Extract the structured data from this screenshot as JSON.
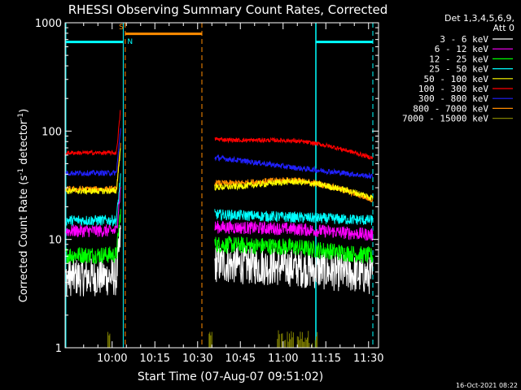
{
  "chart_data": {
    "type": "line",
    "title": "RHESSI Observing Summary Count Rates, Corrected",
    "xlabel": "Start Time (07-Aug-07 09:51:02)",
    "ylabel_main": "Corrected Count Rate (s",
    "ylabel_sup1": "-1",
    "ylabel_mid": " detector",
    "ylabel_sup2": "-1",
    "ylabel_end": ")",
    "y_scale": "log",
    "ylim": [
      1,
      1000
    ],
    "xlim_minutes": [
      -16.5,
      93.5
    ],
    "x_tick_labels": [
      "10:00",
      "10:15",
      "10:30",
      "10:45",
      "11:00",
      "11:15",
      "11:30"
    ],
    "x_tick_minutes": [
      0,
      15,
      30,
      45,
      60,
      75,
      90
    ],
    "y_tick_labels": [
      "1",
      "10",
      "100",
      "1000"
    ],
    "y_tick_values": [
      1,
      10,
      100,
      1000
    ],
    "legend_header": [
      "Det 1,3,4,5,6,9,",
      "Att 0"
    ],
    "footer_date": "16-Oct-2021 08:22",
    "annotations": [
      {
        "text": "S",
        "color": "#ff8c00"
      },
      {
        "text": "N",
        "color": "#00ffff"
      }
    ],
    "data_gap_minutes": [
      3,
      36
    ],
    "series": [
      {
        "name": "3 - 6 keV",
        "color": "#000000",
        "display_color": "#ffffff",
        "before_gap": 4.5,
        "after_start": 6.0,
        "after_mid": 5.5,
        "after_end": 4.6,
        "noise": 0.18
      },
      {
        "name": "6 - 12 keV",
        "color": "#ff00ff",
        "before_gap": 12,
        "after_start": 13,
        "after_mid": 12.5,
        "after_end": 11,
        "noise": 0.06
      },
      {
        "name": "12 - 25 keV",
        "color": "#00ff00",
        "before_gap": 7.2,
        "after_start": 9.0,
        "after_mid": 8.5,
        "after_end": 7.0,
        "noise": 0.08
      },
      {
        "name": "25 - 50 keV",
        "color": "#00ffff",
        "before_gap": 15,
        "after_start": 17,
        "after_mid": 16,
        "after_end": 15,
        "noise": 0.05
      },
      {
        "name": "50 - 100 keV",
        "color": "#ffff00",
        "before_gap": 28,
        "after_start": 33,
        "after_mid": 32,
        "after_end": 25,
        "noise": 0.03
      },
      {
        "name": "100 - 300 keV",
        "color": "#ff0000",
        "before_gap": 63,
        "after_start": 92,
        "after_mid": 76,
        "after_end": 58,
        "noise": 0.02
      },
      {
        "name": "300 - 800 keV",
        "color": "#0000ff",
        "display_color": "#2020ff",
        "before_gap": 41,
        "after_start": 57,
        "after_mid": 46,
        "after_end": 38,
        "noise": 0.025
      },
      {
        "name": "800 - 7000 keV",
        "color": "#ff8c00",
        "before_gap": 29,
        "after_start": 36,
        "after_mid": 33,
        "after_end": 24,
        "noise": 0.03
      },
      {
        "name": "7000 - 15000 keV",
        "color": "#808000",
        "before_gap": 1,
        "after_start": 1,
        "after_mid": 1,
        "after_end": 1,
        "noise": 0
      }
    ]
  }
}
